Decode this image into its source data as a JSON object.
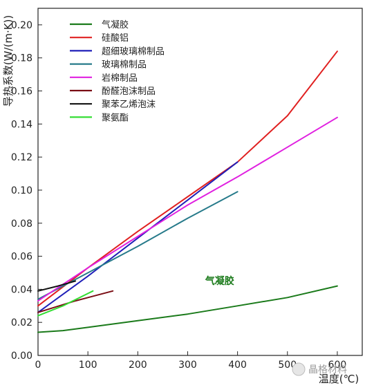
{
  "chart_data": {
    "type": "line",
    "xlabel": "温度(℃)",
    "ylabel": "导热系数(W/(m·K))",
    "xlim": [
      0,
      650
    ],
    "ylim": [
      0,
      0.21
    ],
    "xticks": [
      0,
      100,
      200,
      300,
      400,
      500,
      600
    ],
    "yticks": [
      0.0,
      0.02,
      0.04,
      0.06,
      0.08,
      0.1,
      0.12,
      0.14,
      0.16,
      0.18,
      0.2
    ],
    "ytick_labels": [
      "0.00",
      "0.02",
      "0.04",
      "0.06",
      "0.08",
      "0.10",
      "0.12",
      "0.14",
      "0.16",
      "0.18",
      "0.20"
    ],
    "legend_position": "top-left",
    "series": [
      {
        "name": "气凝胶",
        "color": "#1a7a1a",
        "x": [
          0,
          50,
          100,
          200,
          300,
          400,
          500,
          600
        ],
        "y": [
          0.014,
          0.015,
          0.017,
          0.021,
          0.025,
          0.03,
          0.035,
          0.042
        ]
      },
      {
        "name": "硅酸铝",
        "color": "#e02020",
        "x": [
          0,
          100,
          200,
          300,
          400,
          500,
          600
        ],
        "y": [
          0.03,
          0.053,
          0.075,
          0.096,
          0.117,
          0.145,
          0.184
        ]
      },
      {
        "name": "超细玻璃棉制品",
        "color": "#1f1fb8",
        "x": [
          0,
          100,
          200,
          300,
          400
        ],
        "y": [
          0.026,
          0.048,
          0.071,
          0.094,
          0.117
        ]
      },
      {
        "name": "玻璃棉制品",
        "color": "#267a8a",
        "x": [
          0,
          100,
          200,
          300,
          400
        ],
        "y": [
          0.034,
          0.05,
          0.066,
          0.083,
          0.099
        ]
      },
      {
        "name": "岩棉制品",
        "color": "#e020e0",
        "x": [
          0,
          100,
          200,
          300,
          400,
          500,
          600
        ],
        "y": [
          0.033,
          0.053,
          0.072,
          0.091,
          0.108,
          0.126,
          0.144
        ]
      },
      {
        "name": "酚醛泡沫制品",
        "color": "#7a0d14",
        "x": [
          0,
          75,
          150
        ],
        "y": [
          0.026,
          0.033,
          0.039
        ]
      },
      {
        "name": "聚苯乙烯泡沫",
        "color": "#111111",
        "x": [
          0,
          40,
          75
        ],
        "y": [
          0.039,
          0.042,
          0.045
        ]
      },
      {
        "name": "聚氨酯",
        "color": "#33dd33",
        "x": [
          0,
          50,
          110
        ],
        "y": [
          0.024,
          0.03,
          0.039
        ]
      }
    ],
    "annotations": [
      {
        "text": "气凝胶",
        "x": 335,
        "y": 0.043,
        "color": "#1a7a1a"
      }
    ]
  },
  "watermark": {
    "text": "晶格材料"
  }
}
